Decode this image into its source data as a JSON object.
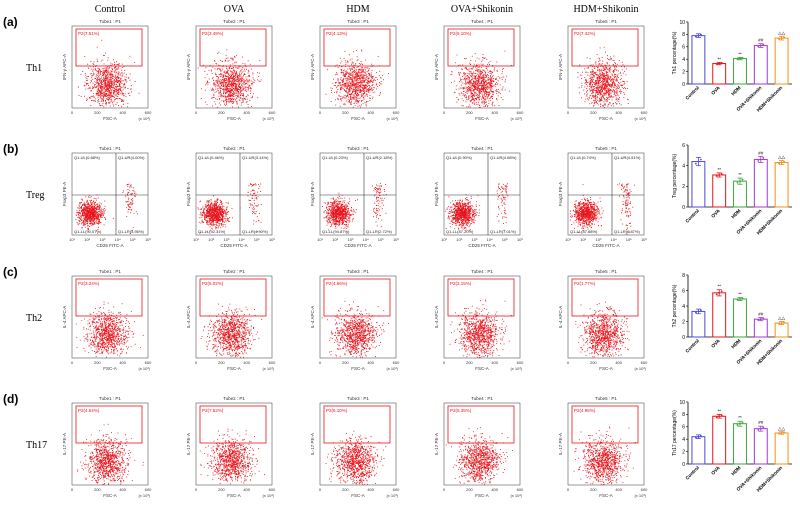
{
  "columns": [
    "Control",
    "OVA",
    "HDM",
    "OVA+Shikonin",
    "HDM+Shikonin"
  ],
  "tube_labels": [
    "Tube1 : P1",
    "Tube2 : P1",
    "Tube3 : P1",
    "Tube4 : P1",
    "Tube5 : P1"
  ],
  "colors": {
    "dots": "#e8141b",
    "gate": "#e8141b",
    "quad_line": "#333333",
    "bar_control": "#4a4ae0",
    "bar_ova": "#e8141b",
    "bar_hdm": "#3aa83a",
    "bar_ova_shikonin": "#a33ad0",
    "bar_hdm_shikonin": "#f0901a"
  },
  "rows": [
    {
      "panel_letter": "(a)",
      "cell_label": "Th1",
      "plot_kind": "gate",
      "y_axis_label": "IFN-γ APC-A",
      "x_axis_label": "FSC-A",
      "x_axis_unit": "(x 10³)",
      "x_ticks": [
        "0",
        "200",
        "400",
        "600"
      ],
      "gate_labels": [
        "P2(7.51%)",
        "P2(3.49%)",
        "P2(4.13%)",
        "P2(6.10%)",
        "P2(7.42%)"
      ]
    },
    {
      "panel_letter": "(b)",
      "cell_label": "Treg",
      "plot_kind": "quadrant",
      "y_axis_label": "Foxp3 PE-A",
      "x_axis_label": "CD25 FITC-A",
      "x_ticks": [
        "10¹",
        "10²",
        "10³",
        "10⁴",
        "10⁵",
        "10⁶"
      ],
      "quadrants": [
        {
          "ul": "Q1-UL(0.68%)",
          "ur": "Q1-UR(4.00%)",
          "ll": "Q1-LL(90.07%)",
          "lr": "Q1-LR(5.95%)"
        },
        {
          "ul": "Q1-UL(0.46%)",
          "ur": "Q1-UR(3.14%)",
          "ll": "Q1-LL(92.31%)",
          "lr": "Q1-LR(4.90%)"
        },
        {
          "ul": "Q1-UL(0.23%)",
          "ur": "Q1-UR(2.18%)",
          "ll": "Q1-LL(94.87%)",
          "lr": "Q1-LR(2.72%)"
        },
        {
          "ul": "Q1-UL(0.90%)",
          "ur": "Q1-UR(4.68%)",
          "ll": "Q1-LL(87.20%)",
          "lr": "Q1-LR(7.01%)"
        },
        {
          "ul": "Q1-UL(0.74%)",
          "ur": "Q1-UR(4.51%)",
          "ll": "Q1-LL(87.88%)",
          "lr": "Q1-LR(6.87%)"
        }
      ]
    },
    {
      "panel_letter": "(c)",
      "cell_label": "Th2",
      "plot_kind": "gate",
      "y_axis_label": "IL-4 APC-A",
      "x_axis_label": "FSC-A",
      "x_axis_unit": "(x 10³)",
      "x_ticks": [
        "0",
        "200",
        "400",
        "600"
      ],
      "gate_labels": [
        "P2(3.24%)",
        "P2(5.02%)",
        "P2(4.66%)",
        "P2(2.15%)",
        "P2(1.77%)"
      ]
    },
    {
      "panel_letter": "(d)",
      "cell_label": "Th17",
      "plot_kind": "gate",
      "y_axis_label": "IL-17 PE-A",
      "x_axis_label": "FSC-A",
      "x_axis_unit": "(x 10³)",
      "x_ticks": [
        "0",
        "200",
        "400",
        "600"
      ],
      "gate_labels": [
        "P2(4.54%)",
        "P2(7.52%)",
        "P2(6.10%)",
        "P2(5.35%)",
        "P2(4.96%)"
      ]
    }
  ],
  "chart_data": [
    {
      "type": "bar",
      "ylabel": "Th1 percentage(%)",
      "categories": [
        "Control",
        "OVA",
        "HDM",
        "OVA+Shikonin",
        "HDM+Shikonin"
      ],
      "values": [
        7.8,
        3.3,
        4.1,
        6.2,
        7.4
      ],
      "errors": [
        0.3,
        0.2,
        0.2,
        0.3,
        0.3
      ],
      "ylim": [
        0,
        10
      ],
      "yticks": [
        0,
        2,
        4,
        6,
        8,
        10
      ],
      "significance": [
        "",
        "**",
        "**",
        "##",
        "△△"
      ]
    },
    {
      "type": "bar",
      "ylabel": "Treg percentage(%)",
      "categories": [
        "Control",
        "OVA",
        "HDM",
        "OVA+Shikonin",
        "HDM+Shikonin"
      ],
      "values": [
        4.4,
        3.1,
        2.5,
        4.6,
        4.3
      ],
      "errors": [
        0.4,
        0.2,
        0.3,
        0.3,
        0.2
      ],
      "ylim": [
        0,
        6
      ],
      "yticks": [
        0,
        2,
        4,
        6
      ],
      "significance": [
        "",
        "**",
        "**",
        "##",
        "△△"
      ]
    },
    {
      "type": "bar",
      "ylabel": "Th2 percentage(%)",
      "categories": [
        "Control",
        "OVA",
        "HDM",
        "OVA+Shikonin",
        "HDM+Shikonin"
      ],
      "values": [
        3.3,
        5.7,
        4.9,
        2.3,
        1.8
      ],
      "errors": [
        0.3,
        0.4,
        0.2,
        0.2,
        0.2
      ],
      "ylim": [
        0,
        8
      ],
      "yticks": [
        0,
        2,
        4,
        6,
        8
      ],
      "significance": [
        "",
        "**",
        "**",
        "##",
        "△△"
      ]
    },
    {
      "type": "bar",
      "ylabel": "Th17 percentage(%)",
      "categories": [
        "Control",
        "OVA",
        "HDM",
        "OVA+Shikonin",
        "HDM+Shikonin"
      ],
      "values": [
        4.4,
        7.7,
        6.5,
        5.7,
        5.0
      ],
      "errors": [
        0.3,
        0.3,
        0.4,
        0.4,
        0.2
      ],
      "ylim": [
        0,
        10
      ],
      "yticks": [
        0,
        2,
        4,
        6,
        8,
        10
      ],
      "significance": [
        "",
        "**",
        "**",
        "##",
        "△△"
      ]
    }
  ]
}
